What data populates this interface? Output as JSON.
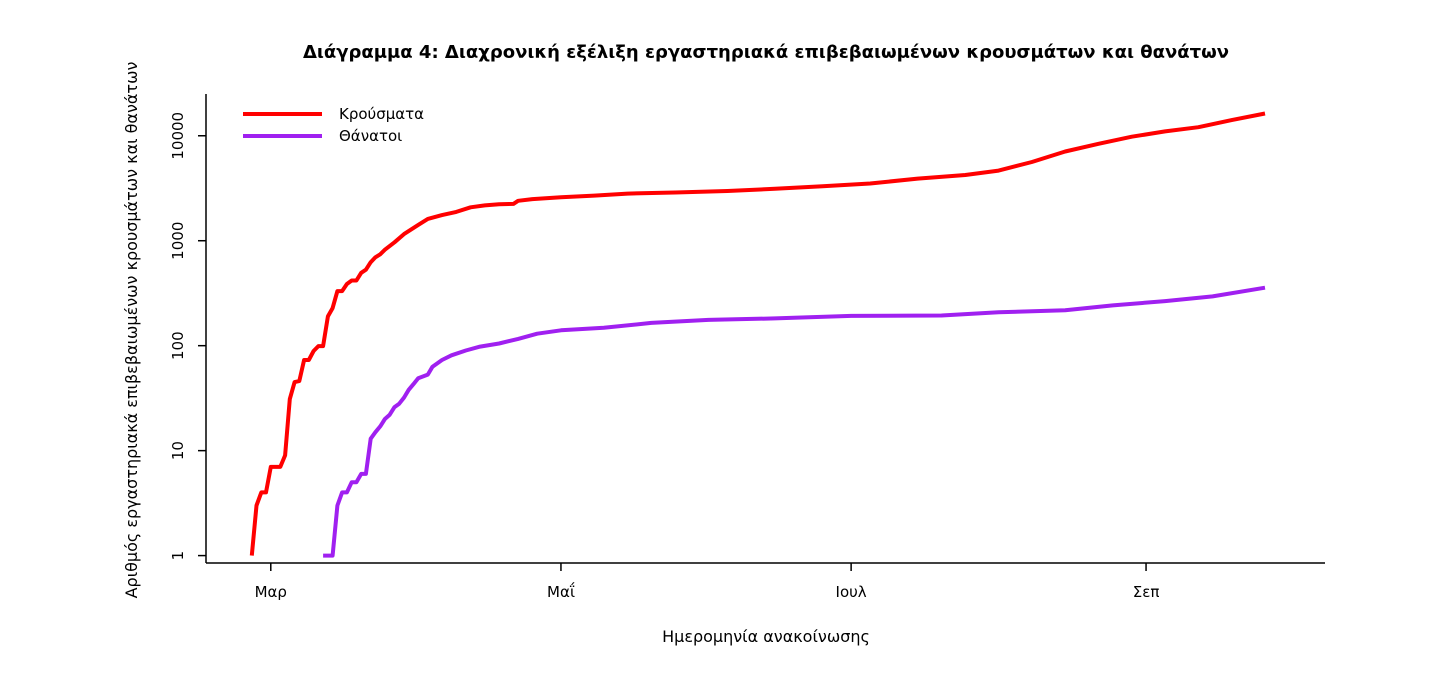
{
  "chart_data": {
    "type": "line",
    "title": "Διάγραμμα 4: Διαχρονική εξέλιξη εργαστηριακά επιβεβαιωμένων κρουσμάτων και θανάτων",
    "xlabel": "Ημερομηνία ανακοίνωσης",
    "ylabel": "Αριθμός εργαστηριακά επιβεβαιωμένων κρουσμάτων και θανάτων",
    "y_scale": "log",
    "ylim": [
      0.85,
      25000
    ],
    "xlim": [
      "2020-02-25",
      "2020-09-30"
    ],
    "y_ticks": [
      {
        "value": 1,
        "label": "1"
      },
      {
        "value": 10,
        "label": "10"
      },
      {
        "value": 100,
        "label": "100"
      },
      {
        "value": 1000,
        "label": "1000"
      },
      {
        "value": 10000,
        "label": "10000"
      }
    ],
    "x_ticks": [
      {
        "value": "2020-03-01",
        "label": "Μαρ"
      },
      {
        "value": "2020-05-01",
        "label": "Μαΐ"
      },
      {
        "value": "2020-07-01",
        "label": "Ιουλ"
      },
      {
        "value": "2020-09-01",
        "label": "Σεπ"
      }
    ],
    "grid": false,
    "legend_position": "top-left",
    "series": [
      {
        "name": "Κρούσματα",
        "color": "#ff0000",
        "points": [
          [
            "2020-02-26",
            1
          ],
          [
            "2020-02-27",
            3
          ],
          [
            "2020-02-28",
            4
          ],
          [
            "2020-02-29",
            4
          ],
          [
            "2020-03-01",
            7
          ],
          [
            "2020-03-03",
            7
          ],
          [
            "2020-03-04",
            9
          ],
          [
            "2020-03-05",
            31
          ],
          [
            "2020-03-06",
            45
          ],
          [
            "2020-03-07",
            46
          ],
          [
            "2020-03-08",
            73
          ],
          [
            "2020-03-09",
            73
          ],
          [
            "2020-03-10",
            89
          ],
          [
            "2020-03-11",
            99
          ],
          [
            "2020-03-12",
            99
          ],
          [
            "2020-03-13",
            190
          ],
          [
            "2020-03-14",
            228
          ],
          [
            "2020-03-15",
            331
          ],
          [
            "2020-03-16",
            331
          ],
          [
            "2020-03-17",
            387
          ],
          [
            "2020-03-18",
            418
          ],
          [
            "2020-03-19",
            418
          ],
          [
            "2020-03-20",
            495
          ],
          [
            "2020-03-21",
            530
          ],
          [
            "2020-03-22",
            624
          ],
          [
            "2020-03-23",
            695
          ],
          [
            "2020-03-24",
            743
          ],
          [
            "2020-03-25",
            821
          ],
          [
            "2020-03-27",
            966
          ],
          [
            "2020-03-29",
            1156
          ],
          [
            "2020-04-01",
            1415
          ],
          [
            "2020-04-03",
            1613
          ],
          [
            "2020-04-06",
            1755
          ],
          [
            "2020-04-09",
            1884
          ],
          [
            "2020-04-12",
            2081
          ],
          [
            "2020-04-15",
            2170
          ],
          [
            "2020-04-18",
            2224
          ],
          [
            "2020-04-21",
            2245
          ],
          [
            "2020-04-22",
            2401
          ],
          [
            "2020-04-25",
            2490
          ],
          [
            "2020-05-01",
            2591
          ],
          [
            "2020-05-08",
            2690
          ],
          [
            "2020-05-15",
            2810
          ],
          [
            "2020-05-25",
            2882
          ],
          [
            "2020-06-05",
            2980
          ],
          [
            "2020-06-15",
            3121
          ],
          [
            "2020-06-25",
            3300
          ],
          [
            "2020-07-05",
            3511
          ],
          [
            "2020-07-15",
            3910
          ],
          [
            "2020-07-25",
            4227
          ],
          [
            "2020-08-01",
            4662
          ],
          [
            "2020-08-08",
            5623
          ],
          [
            "2020-08-15",
            7075
          ],
          [
            "2020-08-22",
            8381
          ],
          [
            "2020-08-29",
            9800
          ],
          [
            "2020-09-05",
            10998
          ],
          [
            "2020-09-12",
            12080
          ],
          [
            "2020-09-19",
            14100
          ],
          [
            "2020-09-26",
            16286
          ]
        ]
      },
      {
        "name": "Θάνατοι",
        "color": "#a020f0",
        "points": [
          [
            "2020-03-12",
            1
          ],
          [
            "2020-03-14",
            1
          ],
          [
            "2020-03-15",
            3
          ],
          [
            "2020-03-16",
            4
          ],
          [
            "2020-03-17",
            4
          ],
          [
            "2020-03-18",
            5
          ],
          [
            "2020-03-19",
            5
          ],
          [
            "2020-03-20",
            6
          ],
          [
            "2020-03-21",
            6
          ],
          [
            "2020-03-22",
            13
          ],
          [
            "2020-03-23",
            15
          ],
          [
            "2020-03-24",
            17
          ],
          [
            "2020-03-25",
            20
          ],
          [
            "2020-03-26",
            22
          ],
          [
            "2020-03-27",
            26
          ],
          [
            "2020-03-28",
            28
          ],
          [
            "2020-03-29",
            32
          ],
          [
            "2020-03-30",
            38
          ],
          [
            "2020-03-31",
            43
          ],
          [
            "2020-04-01",
            49
          ],
          [
            "2020-04-03",
            53
          ],
          [
            "2020-04-04",
            63
          ],
          [
            "2020-04-06",
            73
          ],
          [
            "2020-04-08",
            81
          ],
          [
            "2020-04-11",
            90
          ],
          [
            "2020-04-14",
            98
          ],
          [
            "2020-04-18",
            105
          ],
          [
            "2020-04-22",
            116
          ],
          [
            "2020-04-26",
            130
          ],
          [
            "2020-05-01",
            140
          ],
          [
            "2020-05-10",
            148
          ],
          [
            "2020-05-20",
            165
          ],
          [
            "2020-06-01",
            176
          ],
          [
            "2020-06-15",
            182
          ],
          [
            "2020-07-01",
            192
          ],
          [
            "2020-07-20",
            194
          ],
          [
            "2020-08-01",
            208
          ],
          [
            "2020-08-15",
            218
          ],
          [
            "2020-08-25",
            242
          ],
          [
            "2020-09-05",
            266
          ],
          [
            "2020-09-15",
            295
          ],
          [
            "2020-09-26",
            357
          ]
        ]
      }
    ]
  }
}
